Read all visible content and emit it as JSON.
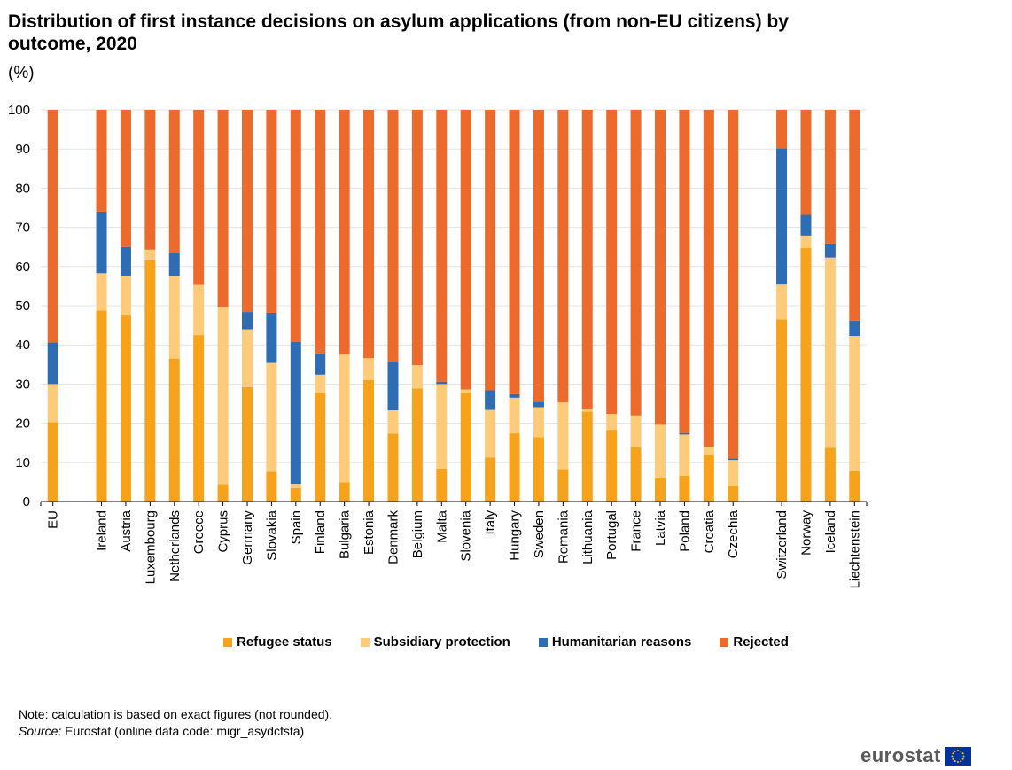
{
  "title": "Distribution of first instance decisions on asylum applications (from non-EU citizens) by outcome, 2020",
  "unit": "(%)",
  "note_text": "Note: calculation is based on exact figures (not rounded).",
  "source_label": "Source:",
  "source_text": "Eurostat (online data code: migr_asydcfsta)",
  "logo_text": "eurostat",
  "icons": {
    "flag": "eu-flag-icon"
  },
  "colors": {
    "refugee": "#f7a21b",
    "subsidiary": "#fdcb7a",
    "humanitarian": "#2e6db3",
    "rejected": "#ec6a2c"
  },
  "chart_data": {
    "type": "bar",
    "stacked": true,
    "ylim": [
      0,
      100
    ],
    "yticks": [
      0,
      10,
      20,
      30,
      40,
      50,
      60,
      70,
      80,
      90,
      100
    ],
    "grid": true,
    "legend_position": "bottom",
    "categories": [
      "EU",
      "Ireland",
      "Austria",
      "Luxembourg",
      "Netherlands",
      "Greece",
      "Cyprus",
      "Germany",
      "Slovakia",
      "Spain",
      "Finland",
      "Bulgaria",
      "Estonia",
      "Denmark",
      "Belgium",
      "Malta",
      "Slovenia",
      "Italy",
      "Hungary",
      "Sweden",
      "Romania",
      "Lithuania",
      "Portugal",
      "France",
      "Latvia",
      "Poland",
      "Croatia",
      "Czechia",
      "Switzerland",
      "Norway",
      "Iceland",
      "Liechtenstein"
    ],
    "groups": [
      [
        0
      ],
      [
        1,
        27
      ],
      [
        28,
        31
      ]
    ],
    "series": [
      {
        "name": "Refugee status",
        "values": [
          20.3,
          48.8,
          47.5,
          61.8,
          36.5,
          42.5,
          4.4,
          29.2,
          7.6,
          3.4,
          27.8,
          4.9,
          31.0,
          17.3,
          28.9,
          8.4,
          27.8,
          11.2,
          17.4,
          16.4,
          8.3,
          23.0,
          18.3,
          13.8,
          5.9,
          6.6,
          11.9,
          4.0,
          46.5,
          64.7,
          13.7,
          7.7
        ]
      },
      {
        "name": "Subsidiary protection",
        "values": [
          9.7,
          9.5,
          10.0,
          2.5,
          21.0,
          12.8,
          45.2,
          14.8,
          27.8,
          1.1,
          4.6,
          32.6,
          5.6,
          6.0,
          5.9,
          21.6,
          0.8,
          12.2,
          9.1,
          7.7,
          17.0,
          0.5,
          4.1,
          8.2,
          13.7,
          10.5,
          2.1,
          6.6,
          8.9,
          3.2,
          48.6,
          34.6
        ]
      },
      {
        "name": "Humanitarian reasons",
        "values": [
          10.6,
          15.7,
          7.5,
          0.0,
          6.0,
          0.0,
          0.0,
          4.4,
          12.8,
          36.3,
          5.4,
          0.0,
          0.0,
          12.4,
          0.0,
          0.6,
          0.0,
          5.0,
          0.9,
          1.4,
          0.0,
          0.0,
          0.0,
          0.0,
          0.0,
          0.4,
          0.0,
          0.4,
          34.8,
          5.3,
          3.6,
          3.9
        ]
      },
      {
        "name": "Rejected",
        "values": [
          59.4,
          26.0,
          35.0,
          35.7,
          36.5,
          44.7,
          50.4,
          51.6,
          51.8,
          59.2,
          62.2,
          62.5,
          63.4,
          64.3,
          65.2,
          69.4,
          71.4,
          71.6,
          72.6,
          74.5,
          74.7,
          76.5,
          77.6,
          78.0,
          80.4,
          82.5,
          86.0,
          89.0,
          9.8,
          26.8,
          34.1,
          53.8
        ]
      }
    ]
  }
}
